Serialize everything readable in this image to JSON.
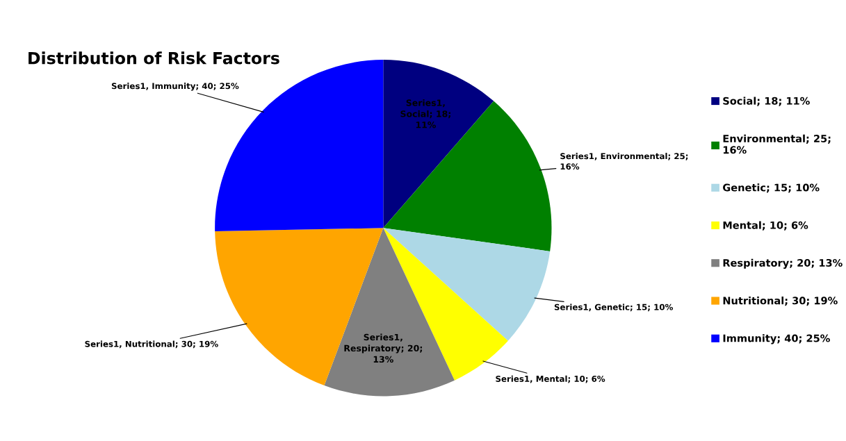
{
  "chart_data": {
    "type": "pie",
    "title": "Distribution of Risk Factors",
    "categories": [
      "Social; 18; 11%",
      "Environmental; 25;\n16%",
      "Genetic; 15; 10%",
      "Mental; 10; 6%",
      "Respiratory; 20; 13%",
      "Nutritional; 30; 19%",
      "Immunity; 40; 25%"
    ],
    "values": [
      18,
      25,
      15,
      10,
      20,
      30,
      40
    ],
    "colors": [
      "#000080",
      "#008000",
      "#add8e6",
      "#ffff00",
      "#808080",
      "#ffa500",
      "#0000ff"
    ],
    "value_labels": [
      "Series1,\nSocial; 18;\n11%",
      "Series1, Environmental; 25;\n16%",
      "Series1, Genetic; 15; 10%",
      "Series1, Mental; 10; 6%",
      "Series1,\nRespiratory; 20;\n13%",
      "Series1, Nutritional; 30; 19%",
      "Series1, Immunity; 40; 25%"
    ],
    "legend": "right"
  }
}
